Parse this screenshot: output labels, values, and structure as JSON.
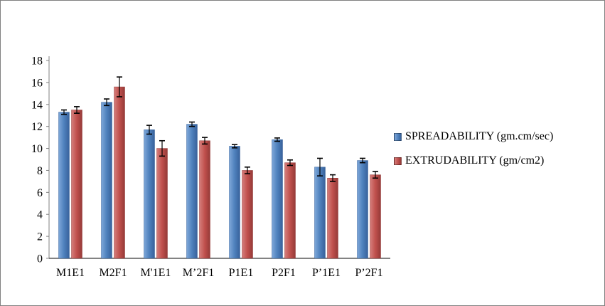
{
  "chart_data": {
    "type": "bar",
    "title": "",
    "xlabel": "",
    "ylabel": "",
    "categories": [
      "M1E1",
      "M2F1",
      "M'1E1",
      "M’2F1",
      "P1E1",
      "P2F1",
      "P’1E1",
      "P’2F1"
    ],
    "series": [
      {
        "name": "SPREADABILITY (gm.cm/sec)",
        "color": "#4F81BD",
        "color_light": "#7FA8D9",
        "color_dark": "#38629B",
        "values": [
          13.3,
          14.2,
          11.7,
          12.2,
          10.2,
          10.8,
          8.3,
          8.9
        ],
        "errors": [
          0.2,
          0.3,
          0.4,
          0.2,
          0.15,
          0.15,
          0.8,
          0.2
        ]
      },
      {
        "name": "EXTRUDABILITY (gm/cm2)",
        "color": "#C0504D",
        "color_light": "#D57F7C",
        "color_dark": "#953A38",
        "values": [
          13.5,
          15.6,
          10.0,
          10.7,
          8.0,
          8.7,
          7.3,
          7.6
        ],
        "errors": [
          0.3,
          0.9,
          0.7,
          0.3,
          0.3,
          0.25,
          0.3,
          0.3
        ]
      }
    ],
    "ylim": [
      0,
      18
    ],
    "ytick_step": 2,
    "grid": false,
    "legend_position": "right",
    "error_bars": true,
    "axis_color": "#808080",
    "error_bar_color": "#000000"
  }
}
